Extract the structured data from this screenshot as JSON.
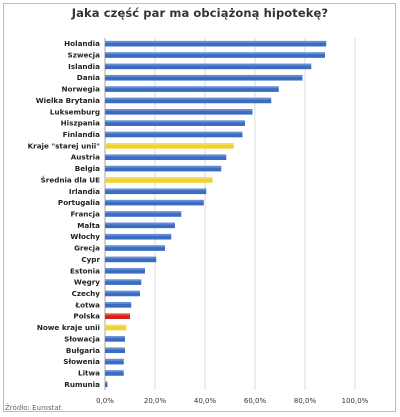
{
  "chart_data": {
    "type": "bar",
    "orientation": "horizontal",
    "title": "Jaka część par ma obciążoną hipotekę?",
    "source": "Źródło: Eurostat",
    "categories": [
      "Holandia",
      "Szwecja",
      "Islandia",
      "Dania",
      "Norwegia",
      "Wielka Brytania",
      "Luksemburg",
      "Hiszpania",
      "Finlandia",
      "Kraje \"starej unii\"",
      "Austria",
      "Belgia",
      "Średnia dla UE",
      "Irlandia",
      "Portugalia",
      "Francja",
      "Malta",
      "Włochy",
      "Grecja",
      "Cypr",
      "Estonia",
      "Węgry",
      "Czechy",
      "Łotwa",
      "Polska",
      "Nowe kraje unii",
      "Słowacja",
      "Bułgaria",
      "Słowenia",
      "Litwa",
      "Rumunia"
    ],
    "values": [
      88.5,
      88.0,
      82.5,
      79.0,
      69.5,
      66.5,
      59.0,
      56.0,
      55.0,
      51.5,
      48.5,
      46.5,
      43.0,
      40.5,
      39.5,
      30.5,
      28.0,
      26.5,
      24.0,
      20.5,
      16.0,
      14.5,
      14.0,
      10.5,
      10.0,
      8.5,
      8.0,
      8.0,
      7.5,
      7.5,
      1.0
    ],
    "bar_colors": [
      "#3a6cc4",
      "#3a6cc4",
      "#3a6cc4",
      "#3a6cc4",
      "#3a6cc4",
      "#3a6cc4",
      "#3a6cc4",
      "#3a6cc4",
      "#3a6cc4",
      "#f0d22a",
      "#3a6cc4",
      "#3a6cc4",
      "#f0d22a",
      "#3a6cc4",
      "#3a6cc4",
      "#3a6cc4",
      "#3a6cc4",
      "#3a6cc4",
      "#3a6cc4",
      "#3a6cc4",
      "#3a6cc4",
      "#3a6cc4",
      "#3a6cc4",
      "#3a6cc4",
      "#d8211a",
      "#f0d22a",
      "#3a6cc4",
      "#3a6cc4",
      "#3a6cc4",
      "#3a6cc4",
      "#3a6cc4"
    ],
    "xlim": [
      0,
      100
    ],
    "xticks": [
      0,
      20,
      40,
      60,
      80,
      100
    ],
    "xtick_labels": [
      "0,0%",
      "20,0%",
      "40,0%",
      "60,0%",
      "80,0%",
      "100,0%"
    ],
    "grid": true,
    "legend": "none",
    "colors": {
      "default": "#3a6cc4",
      "highlight_eu": "#f0d22a",
      "highlight_poland": "#d8211a",
      "grid": "#d3d3d3"
    }
  }
}
